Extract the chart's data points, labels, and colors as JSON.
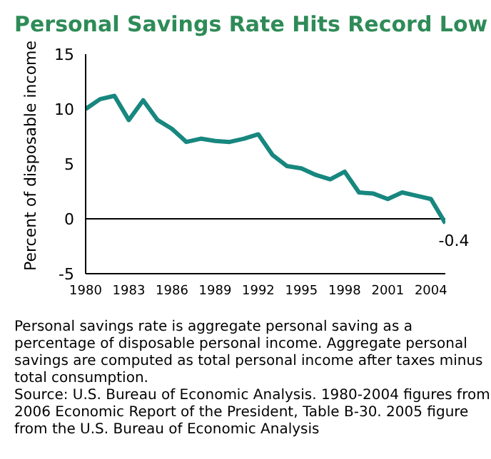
{
  "chart_data": {
    "type": "line",
    "title": "Personal Savings Rate Hits Record Low",
    "ylabel": "Percent of disposable income",
    "x": [
      1980,
      1981,
      1982,
      1983,
      1984,
      1985,
      1986,
      1987,
      1988,
      1989,
      1990,
      1991,
      1992,
      1993,
      1994,
      1995,
      1996,
      1997,
      1998,
      1999,
      2000,
      2001,
      2002,
      2003,
      2004,
      2005
    ],
    "series": [
      {
        "color": "#17877f",
        "values": [
          10.0,
          10.9,
          11.2,
          9.0,
          10.8,
          9.0,
          8.2,
          7.0,
          7.3,
          7.1,
          7.0,
          7.3,
          7.7,
          5.8,
          4.8,
          4.6,
          4.0,
          3.6,
          4.3,
          2.4,
          2.3,
          1.8,
          2.4,
          2.1,
          1.8,
          -0.4
        ]
      }
    ],
    "xlim": [
      1980,
      2005
    ],
    "xticks": [
      1980,
      1983,
      1986,
      1989,
      1992,
      1995,
      1998,
      2001,
      2004
    ],
    "ylim": [
      -5,
      15
    ],
    "yticks": [
      -5,
      0,
      5,
      10,
      15
    ],
    "ref_lines": [
      {
        "axis": "y",
        "value": 0,
        "color": "#000000"
      }
    ],
    "annotations": [
      {
        "text": "-0.4",
        "x": 2005,
        "y": -0.4
      },
      "Personal savings rate is aggregate personal saving as a percentage of disposable personal income. Aggregate personal savings are computed as total personal income after taxes minus total consumption.",
      "Source: U.S. Bureau of Economic Analysis. 1980-2004 figures from 2006 Economic Report of the President, Table B-30. 2005 figure from the U.S. Bureau of Economic Analysis"
    ],
    "grid": false,
    "legend": false,
    "marker": "none",
    "line_style": "solid"
  }
}
